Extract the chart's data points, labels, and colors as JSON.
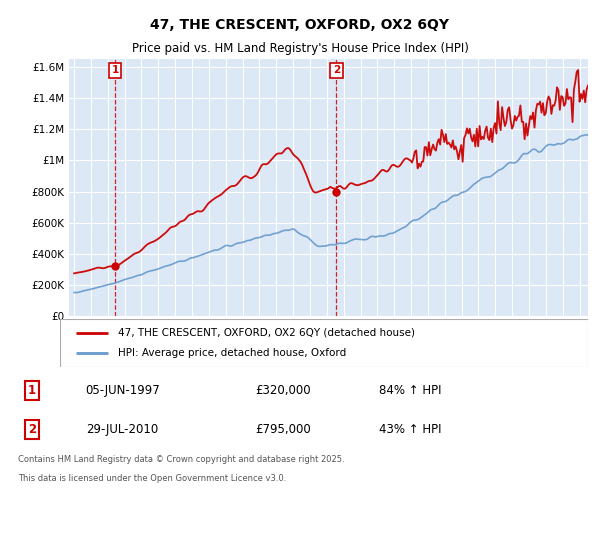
{
  "title": "47, THE CRESCENT, OXFORD, OX2 6QY",
  "subtitle": "Price paid vs. HM Land Registry's House Price Index (HPI)",
  "ylim": [
    0,
    1650000
  ],
  "yticks": [
    0,
    200000,
    400000,
    600000,
    800000,
    1000000,
    1200000,
    1400000,
    1600000
  ],
  "ytick_labels": [
    "£0",
    "£200K",
    "£400K",
    "£600K",
    "£800K",
    "£1M",
    "£1.2M",
    "£1.4M",
    "£1.6M"
  ],
  "plot_bg": "#dce8f5",
  "grid_color": "#ffffff",
  "red_color": "#cc0000",
  "blue_color": "#6699cc",
  "legend_label_red": "47, THE CRESCENT, OXFORD, OX2 6QY (detached house)",
  "legend_label_blue": "HPI: Average price, detached house, Oxford",
  "ann1_num": "1",
  "ann1_date": "05-JUN-1997",
  "ann1_price": "£320,000",
  "ann1_pct": "84% ↑ HPI",
  "ann2_num": "2",
  "ann2_date": "29-JUL-2010",
  "ann2_price": "£795,000",
  "ann2_pct": "43% ↑ HPI",
  "footnote1": "Contains HM Land Registry data © Crown copyright and database right 2025.",
  "footnote2": "This data is licensed under the Open Government Licence v3.0.",
  "marker1_x": 1997.43,
  "marker1_y": 320000,
  "marker2_x": 2010.57,
  "marker2_y": 795000,
  "xmin": 1994.7,
  "xmax": 2025.5
}
